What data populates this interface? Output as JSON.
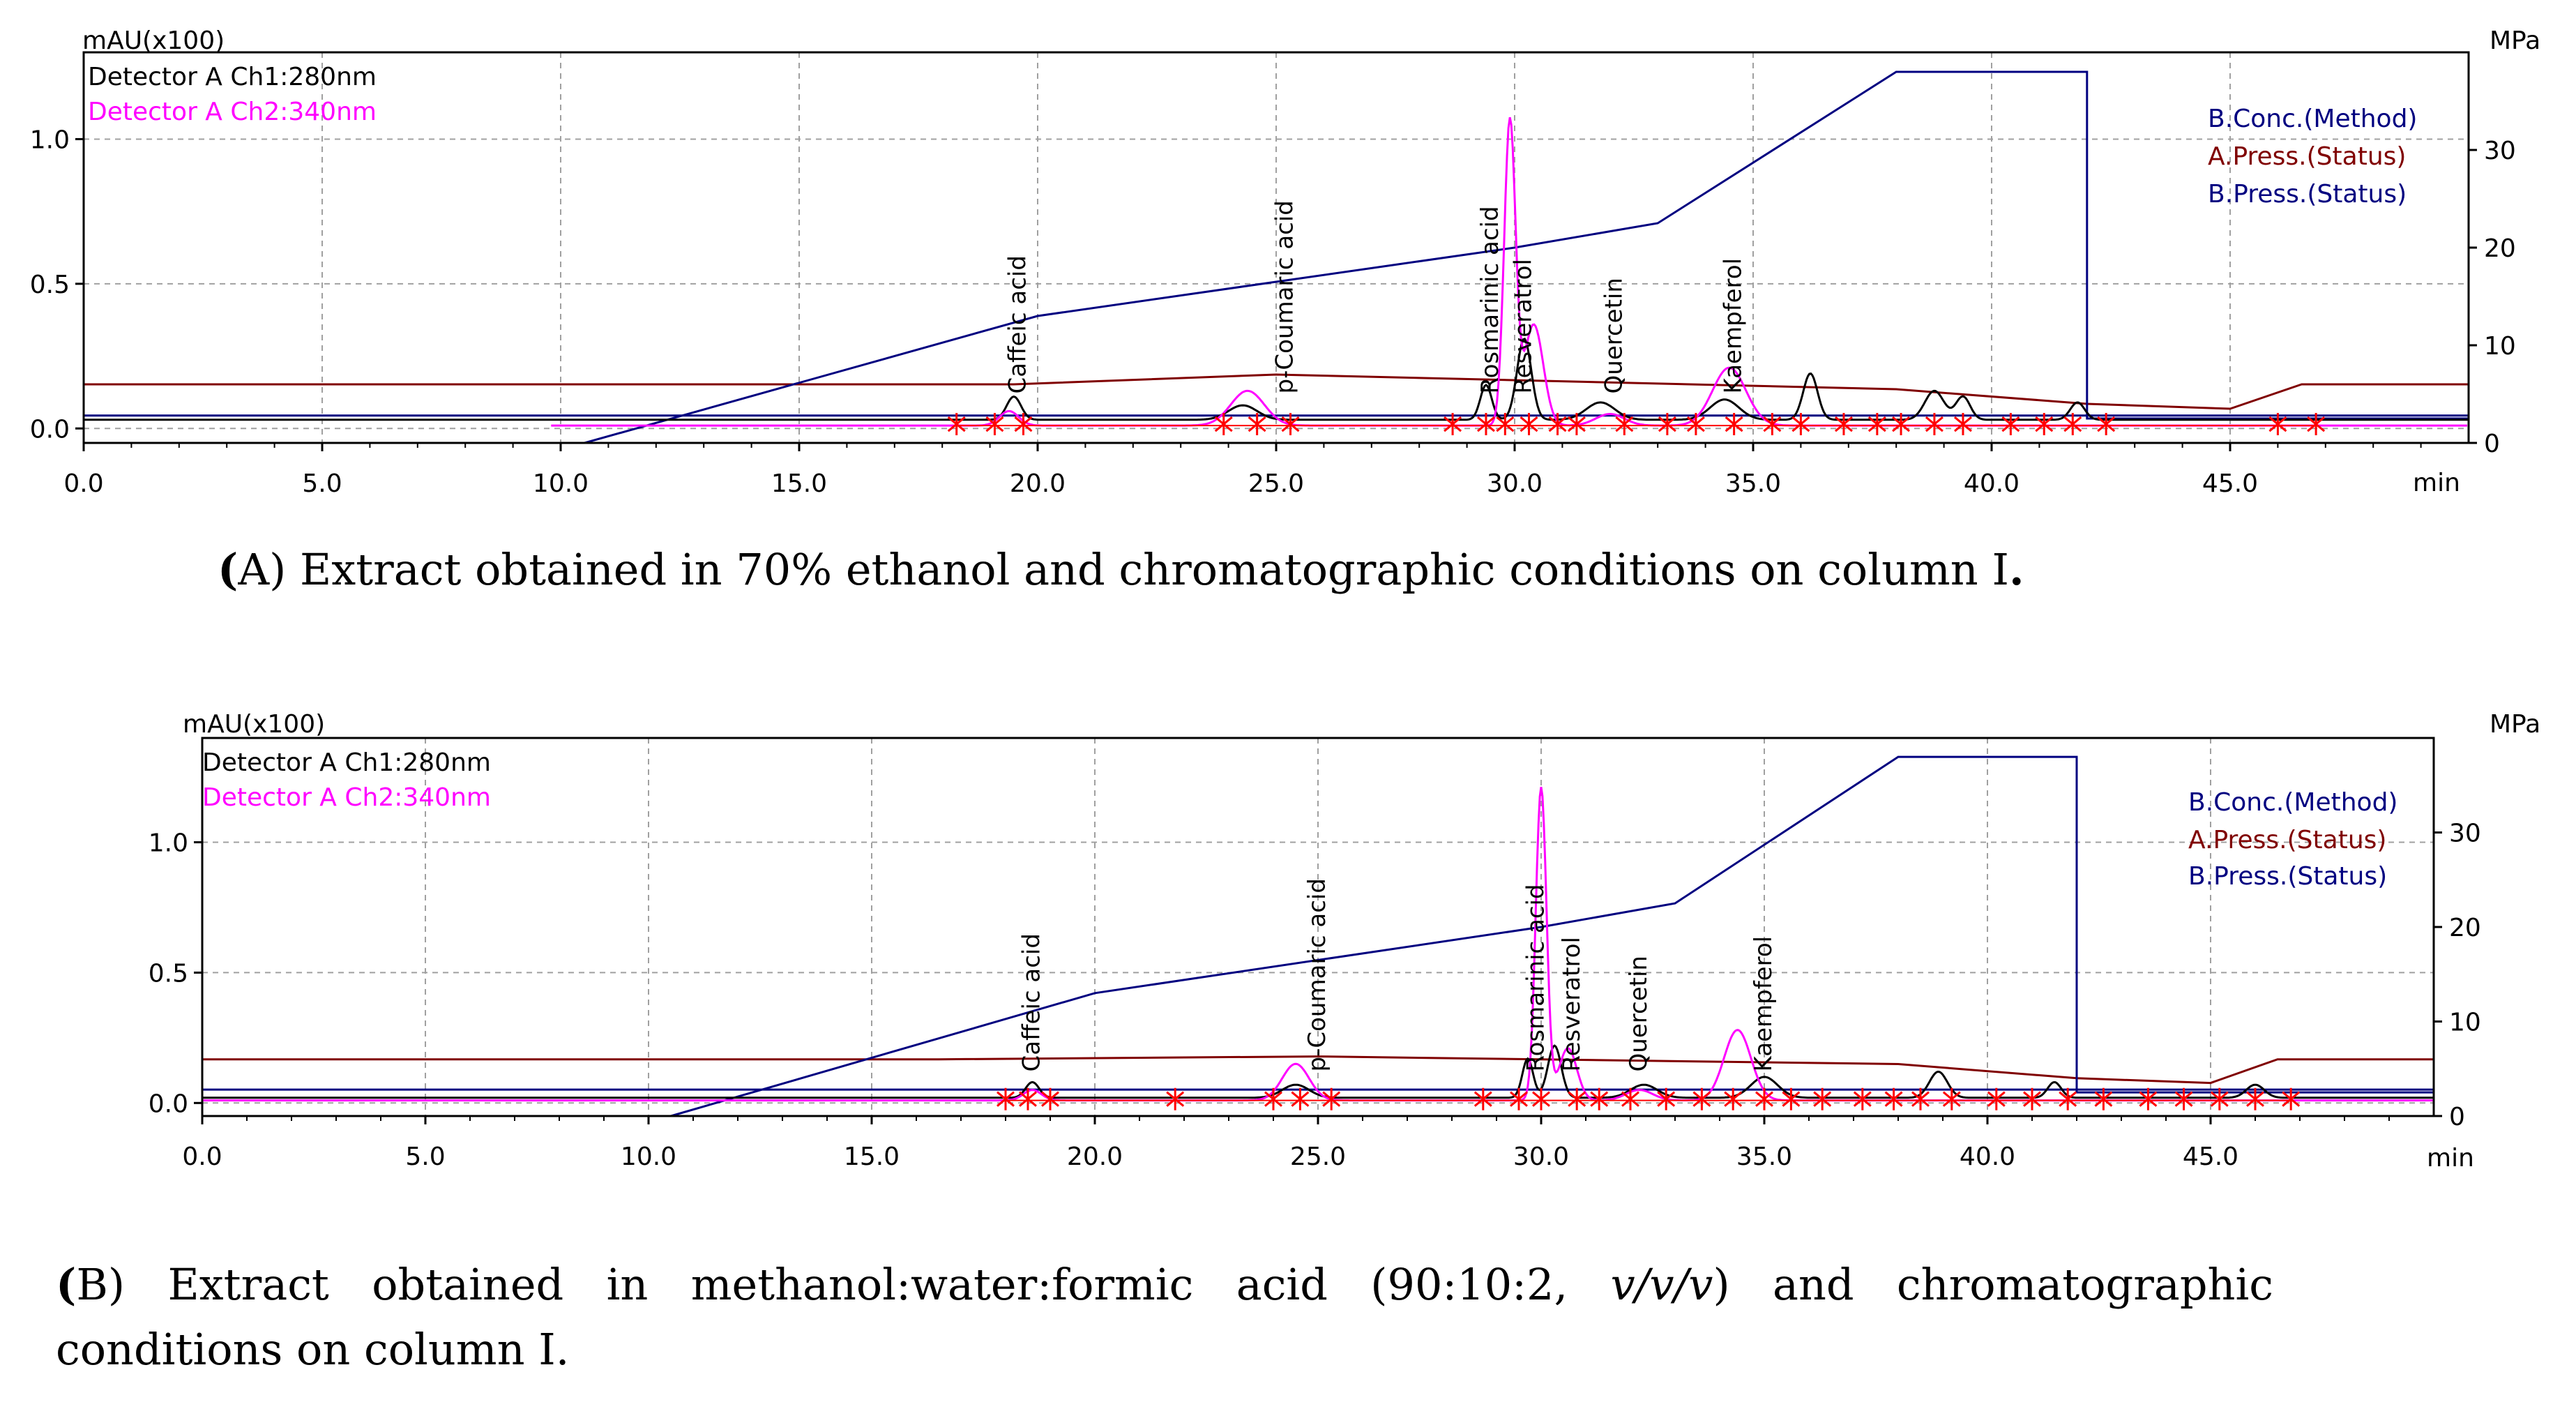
{
  "captions": {
    "a": {
      "open": "(",
      "label": "A",
      "text": ") Extract obtained in 70% ethanol and chromatographic conditions on column I",
      "end": "."
    },
    "b": {
      "open": "(",
      "label": "B",
      "text1": ") Extract obtained in methanol:water:formic acid (90:10:2, ",
      "italic": "v/v/v",
      "text2": ") and chromatographic",
      "line2": "conditions on column I."
    }
  },
  "colors": {
    "ch1": "#000000",
    "ch2": "#ff00ff",
    "conc": "#000080",
    "apress": "#800000",
    "bpress": "#000080",
    "integration": "#ff0000",
    "grid": "#a0a0a0",
    "frame": "#000000"
  },
  "chart_data": [
    {
      "type": "line",
      "panel": "A",
      "y_left_label": "mAU(x100)",
      "y_right_label": "MPa",
      "x_unit_label": "min",
      "xlim": [
        0,
        50
      ],
      "ylim_left": [
        -0.05,
        1.3
      ],
      "ylim_right": [
        0,
        40
      ],
      "x_ticks": [
        "0.0",
        "5.0",
        "10.0",
        "15.0",
        "20.0",
        "25.0",
        "30.0",
        "35.0",
        "40.0",
        "45.0"
      ],
      "x_tick_values": [
        0,
        5,
        10,
        15,
        20,
        25,
        30,
        35,
        40,
        45
      ],
      "y_left_ticks": [
        "0.0",
        "0.5",
        "1.0"
      ],
      "y_left_tick_values": [
        0,
        0.5,
        1.0
      ],
      "y_right_ticks": [
        "0",
        "10",
        "20",
        "30"
      ],
      "y_right_tick_values": [
        0,
        10,
        20,
        30
      ],
      "legend_left": [
        "Detector A Ch1:280nm",
        "Detector A Ch2:340nm"
      ],
      "legend_right": [
        "B.Conc.(Method)",
        "A.Press.(Status)",
        "B.Press.(Status)"
      ],
      "peak_labels": [
        {
          "name": "Caffeic acid",
          "x": 19.6
        },
        {
          "name": "p-Coumaric acid",
          "x": 25.2
        },
        {
          "name": "Rosmarinic acid",
          "x": 29.5
        },
        {
          "name": "Resveratrol",
          "x": 30.2
        },
        {
          "name": "Quercetin",
          "x": 32.1
        },
        {
          "name": "Kaempferol",
          "x": 34.6
        }
      ],
      "ch1_peaks": [
        [
          19.5,
          0.08,
          0.15
        ],
        [
          24.3,
          0.05,
          0.3
        ],
        [
          29.4,
          0.12,
          0.12
        ],
        [
          30.2,
          0.28,
          0.15
        ],
        [
          31.8,
          0.06,
          0.3
        ],
        [
          34.4,
          0.07,
          0.3
        ],
        [
          36.2,
          0.16,
          0.15
        ],
        [
          38.8,
          0.1,
          0.2
        ],
        [
          39.4,
          0.08,
          0.15
        ],
        [
          41.8,
          0.06,
          0.15
        ]
      ],
      "ch1_baseline": 0.03,
      "ch2_peaks": [
        [
          19.4,
          0.05,
          0.2
        ],
        [
          24.4,
          0.12,
          0.35
        ],
        [
          29.9,
          1.05,
          0.12
        ],
        [
          30.4,
          0.35,
          0.2
        ],
        [
          32.0,
          0.04,
          0.3
        ],
        [
          34.5,
          0.2,
          0.35
        ]
      ],
      "ch2_start": 9.8,
      "b_conc_points": [
        [
          10.5,
          0.0
        ],
        [
          20.0,
          13.0
        ],
        [
          30.0,
          20.0
        ],
        [
          33.0,
          22.5
        ],
        [
          38.0,
          38.0
        ],
        [
          42.0,
          38.0
        ],
        [
          42.0,
          2.5
        ],
        [
          50.0,
          2.5
        ]
      ],
      "a_press_points": [
        [
          0,
          6.0
        ],
        [
          19.5,
          6.0
        ],
        [
          25.0,
          7.0
        ],
        [
          38.0,
          5.5
        ],
        [
          42.0,
          4.0
        ],
        [
          45.0,
          3.5
        ],
        [
          46.5,
          6.0
        ],
        [
          50.0,
          6.0
        ]
      ],
      "b_press_points": [
        [
          0,
          2.8
        ],
        [
          50,
          2.8
        ]
      ],
      "integration_marks": [
        18.3,
        19.1,
        19.7,
        23.9,
        24.6,
        25.3,
        28.7,
        29.4,
        29.8,
        30.3,
        30.9,
        31.3,
        32.3,
        33.2,
        33.8,
        34.6,
        35.4,
        36.0,
        36.9,
        37.6,
        38.1,
        38.8,
        39.4,
        40.4,
        41.1,
        41.7,
        42.4,
        46.0,
        46.8
      ]
    },
    {
      "type": "line",
      "panel": "B",
      "y_left_label": "mAU(x100)",
      "y_right_label": "MPa",
      "x_unit_label": "min",
      "xlim": [
        0,
        50
      ],
      "ylim_left": [
        -0.05,
        1.4
      ],
      "ylim_right": [
        0,
        40
      ],
      "x_ticks": [
        "0.0",
        "5.0",
        "10.0",
        "15.0",
        "20.0",
        "25.0",
        "30.0",
        "35.0",
        "40.0",
        "45.0"
      ],
      "x_tick_values": [
        0,
        5,
        10,
        15,
        20,
        25,
        30,
        35,
        40,
        45
      ],
      "y_left_ticks": [
        "0.0",
        "0.5",
        "1.0"
      ],
      "y_left_tick_values": [
        0,
        0.5,
        1.0
      ],
      "y_right_ticks": [
        "0",
        "10",
        "20",
        "30"
      ],
      "y_right_tick_values": [
        0,
        10,
        20,
        30
      ],
      "legend_left": [
        "Detector A Ch1:280nm",
        "Detector A Ch2:340nm"
      ],
      "legend_right": [
        "B.Conc.(Method)",
        "A.Press.(Status)",
        "B.Press.(Status)"
      ],
      "peak_labels": [
        {
          "name": "Caffeic acid",
          "x": 18.6
        },
        {
          "name": "p-Coumaric acid",
          "x": 25.0
        },
        {
          "name": "Rosmarinic acid",
          "x": 29.9
        },
        {
          "name": "Resveratrol",
          "x": 30.7
        },
        {
          "name": "Quercetin",
          "x": 32.2
        },
        {
          "name": "Kaempferol",
          "x": 35.0
        }
      ],
      "ch1_peaks": [
        [
          18.6,
          0.06,
          0.15
        ],
        [
          24.5,
          0.05,
          0.3
        ],
        [
          29.7,
          0.15,
          0.12
        ],
        [
          30.3,
          0.2,
          0.15
        ],
        [
          32.3,
          0.05,
          0.3
        ],
        [
          35.0,
          0.08,
          0.3
        ],
        [
          38.9,
          0.1,
          0.2
        ],
        [
          41.5,
          0.06,
          0.15
        ],
        [
          46.0,
          0.05,
          0.2
        ]
      ],
      "ch1_baseline": 0.02,
      "ch2_peaks": [
        [
          18.6,
          0.04,
          0.2
        ],
        [
          24.5,
          0.14,
          0.3
        ],
        [
          30.0,
          1.2,
          0.12
        ],
        [
          30.6,
          0.2,
          0.2
        ],
        [
          32.2,
          0.04,
          0.3
        ],
        [
          34.4,
          0.27,
          0.3
        ]
      ],
      "ch2_start": 0.0,
      "b_conc_points": [
        [
          10.5,
          0.0
        ],
        [
          20.0,
          13.0
        ],
        [
          30.0,
          20.0
        ],
        [
          33.0,
          22.5
        ],
        [
          38.0,
          38.0
        ],
        [
          42.0,
          38.0
        ],
        [
          42.0,
          2.5
        ],
        [
          50.0,
          2.5
        ]
      ],
      "a_press_points": [
        [
          0,
          6.0
        ],
        [
          16.5,
          6.0
        ],
        [
          25.0,
          6.3
        ],
        [
          38.0,
          5.5
        ],
        [
          42.0,
          4.0
        ],
        [
          45.0,
          3.5
        ],
        [
          46.5,
          6.0
        ],
        [
          50.0,
          6.0
        ]
      ],
      "b_press_points": [
        [
          0,
          2.8
        ],
        [
          50,
          2.8
        ]
      ],
      "integration_marks": [
        18.0,
        18.5,
        19.0,
        21.8,
        24.0,
        24.6,
        25.3,
        28.7,
        29.5,
        30.0,
        30.8,
        31.3,
        32.0,
        32.8,
        33.6,
        34.3,
        35.0,
        35.6,
        36.3,
        37.2,
        37.9,
        38.5,
        39.2,
        40.2,
        41.0,
        41.8,
        42.6,
        43.6,
        44.4,
        45.2,
        46.0,
        46.8
      ]
    }
  ]
}
